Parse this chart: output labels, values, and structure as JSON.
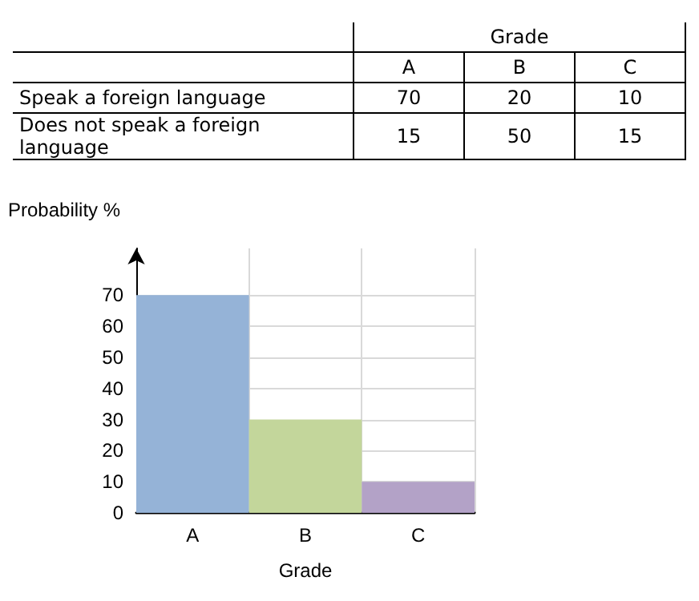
{
  "chart_data": [
    {
      "type": "other",
      "xlabel": "Grade",
      "categories": [
        "A",
        "B",
        "C"
      ],
      "data_labels": true,
      "series": [
        {
          "name": "Speak a foreign language",
          "values": [
            70,
            20,
            10
          ]
        },
        {
          "name": "Does not speak a foreign language",
          "values": [
            15,
            50,
            15
          ]
        }
      ]
    },
    {
      "type": "bar",
      "ylabel": "Probability %",
      "xlabel": "Grade",
      "categories": [
        "A",
        "B",
        "C"
      ],
      "values": [
        70,
        30,
        10
      ],
      "colors": [
        "#95b3d7",
        "#c3d69b",
        "#b3a2c7"
      ],
      "ylim": [
        0,
        85
      ],
      "yticks": [
        0,
        10,
        20,
        30,
        40,
        50,
        60,
        70
      ],
      "grid": true
    }
  ]
}
